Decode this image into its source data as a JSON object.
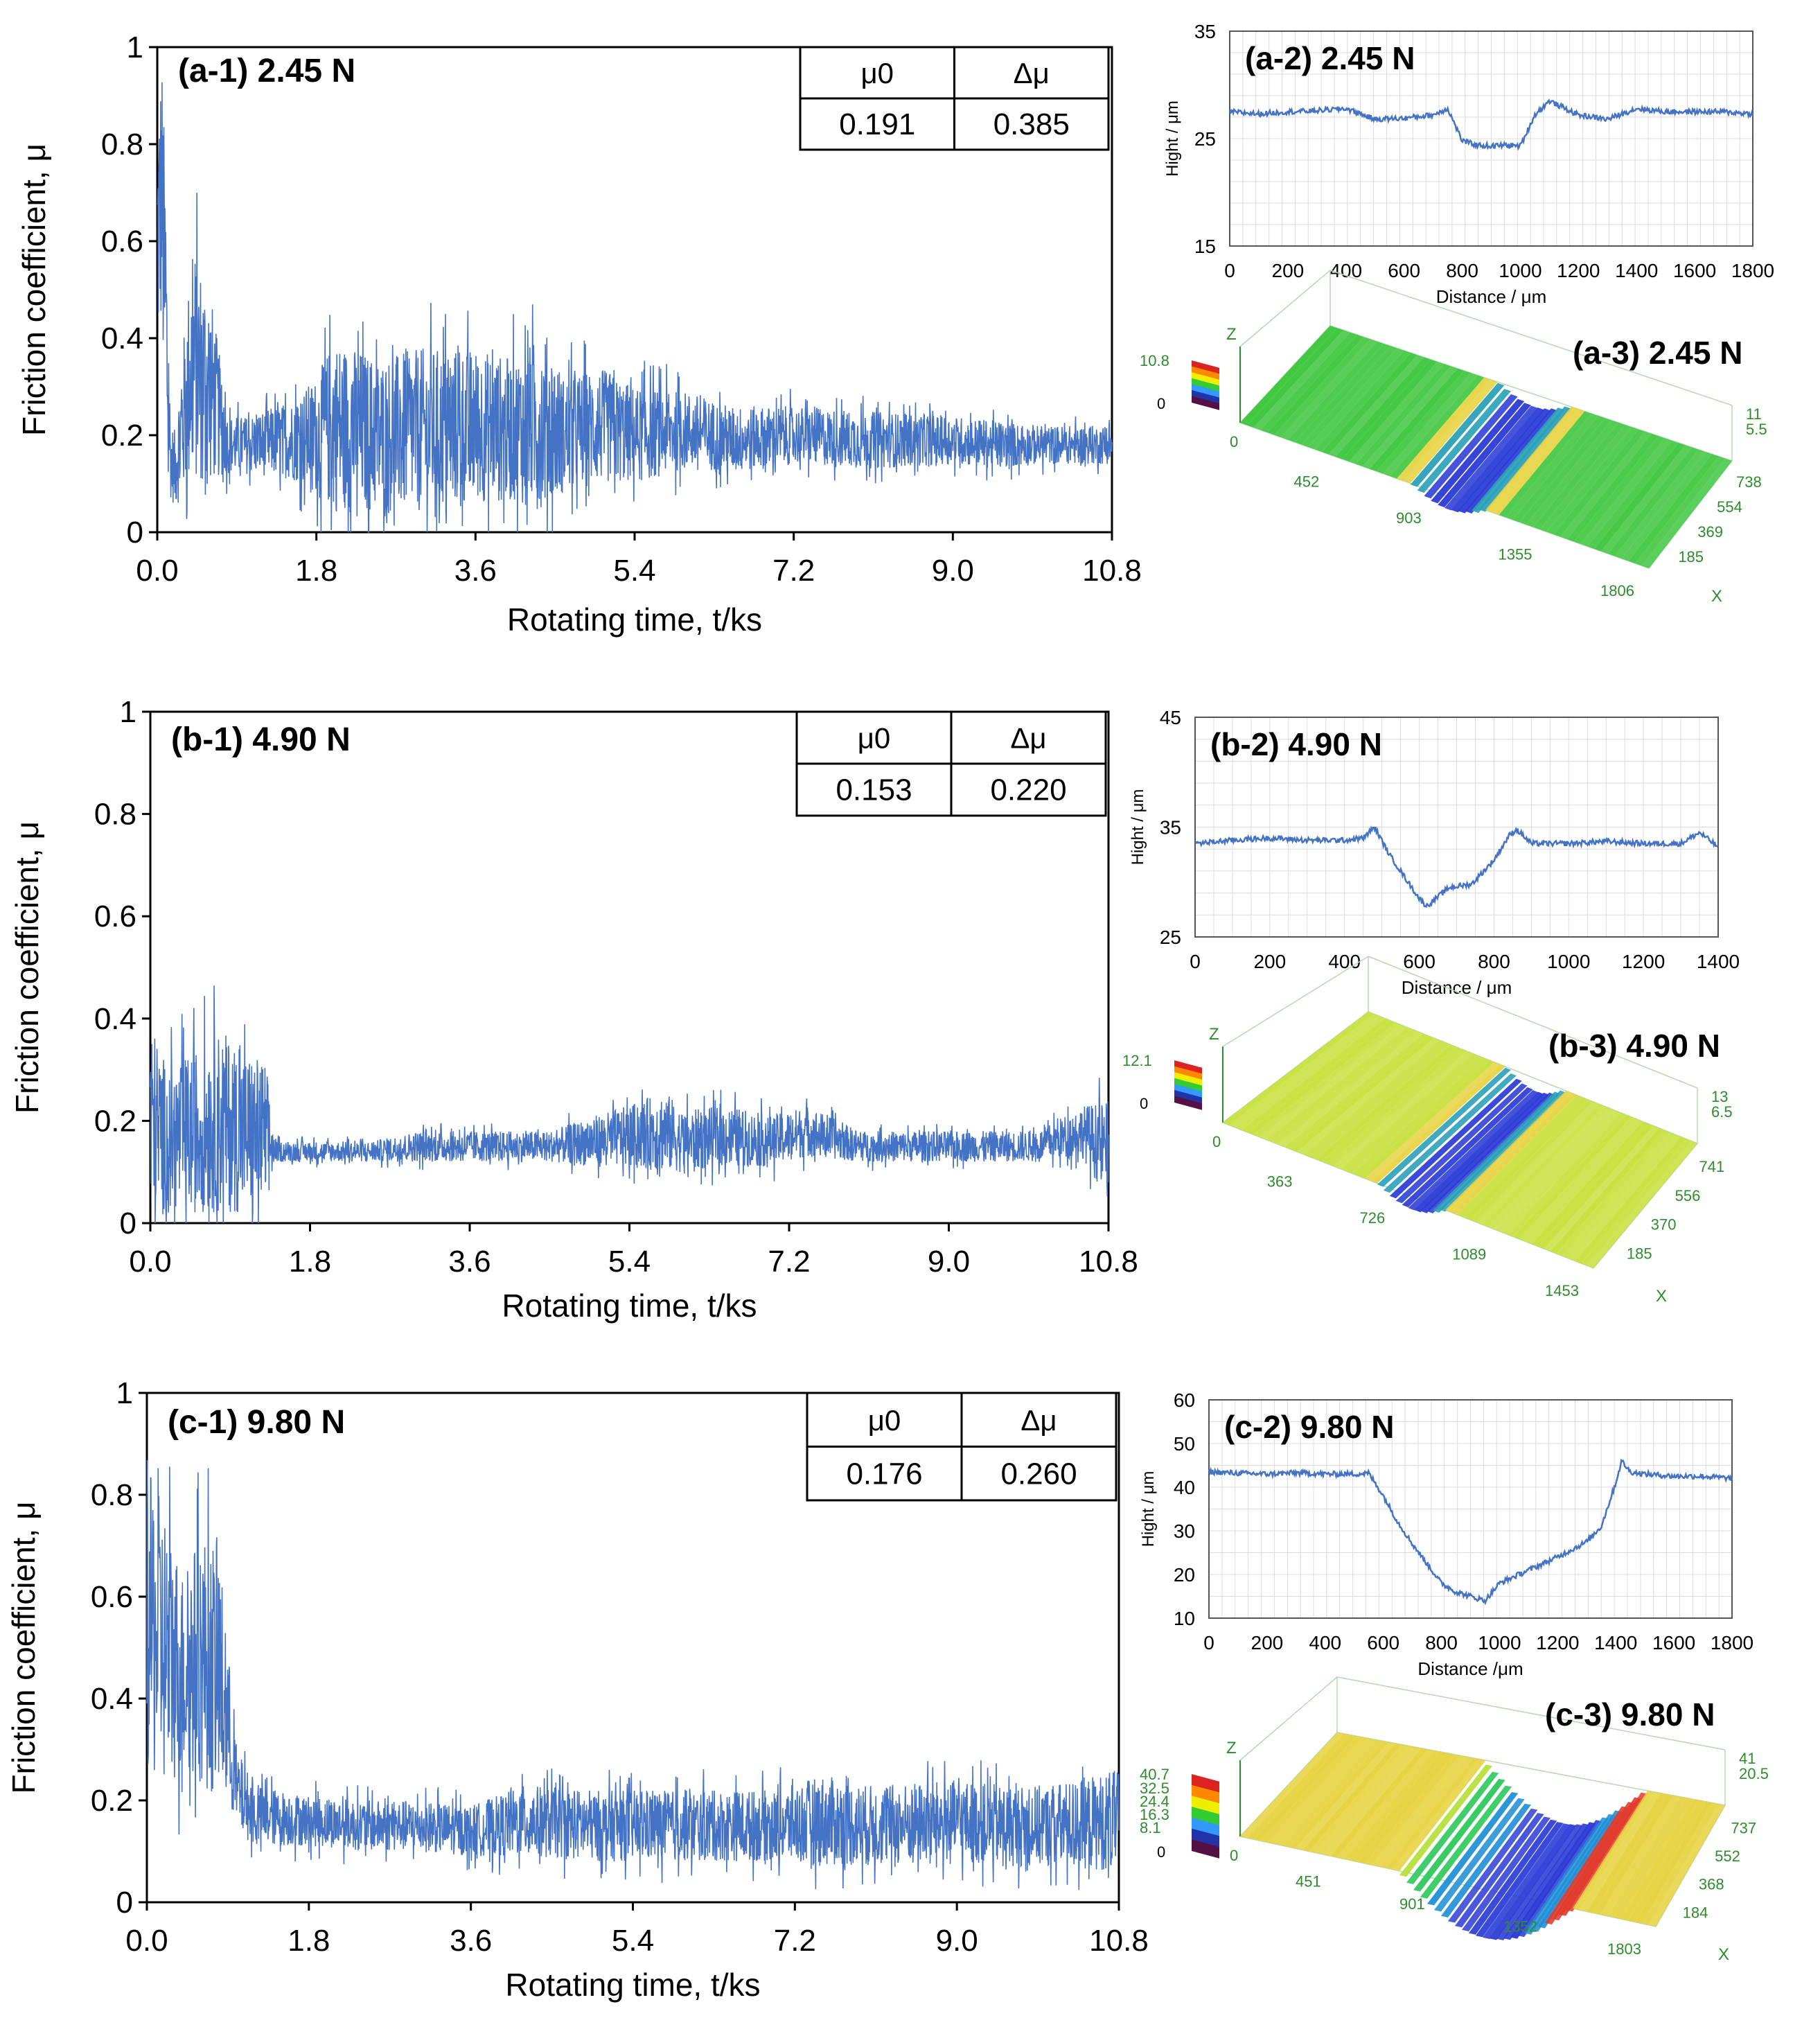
{
  "colors": {
    "line": "#4472C4",
    "axis": "#000000",
    "profile_grid": "#dcdcdc",
    "surface_green": "#3cc63c",
    "surface_yellow": "#e6d23c",
    "surface_blue": "#2b3bd6",
    "surface_red": "#e03a2a",
    "iso_axis": "#2e8b2e"
  },
  "panels": [
    {
      "friction": {
        "label": "(a-1) 2.45 N",
        "table": {
          "h1": "μ0",
          "h2": "Δμ",
          "v1": "0.191",
          "v2": "0.385"
        }
      },
      "profile": {
        "label": "(a-2) 2.45 N"
      },
      "surface": {
        "label": "(a-3) 2.45 N",
        "z_label": "Z",
        "x_label": "X",
        "legend_max": "10.8",
        "legend_min": "0",
        "origin": "0",
        "x_ticks": [
          "452",
          "903",
          "1355",
          "1806"
        ],
        "y_ticks": [
          "738",
          "554",
          "369",
          "185"
        ],
        "z_ticks": [
          "11",
          "5.5"
        ]
      }
    },
    {
      "friction": {
        "label": "(b-1) 4.90 N",
        "table": {
          "h1": "μ0",
          "h2": "Δμ",
          "v1": "0.153",
          "v2": "0.220"
        }
      },
      "profile": {
        "label": "(b-2) 4.90 N"
      },
      "surface": {
        "label": "(b-3) 4.90 N",
        "z_label": "Z",
        "x_label": "X",
        "legend_max": "12.1",
        "legend_min": "0",
        "origin": "0",
        "x_ticks": [
          "363",
          "726",
          "1089",
          "1453"
        ],
        "y_ticks": [
          "741",
          "556",
          "370",
          "185"
        ],
        "z_ticks": [
          "13",
          "6.5"
        ]
      }
    },
    {
      "friction": {
        "label": "(c-1) 9.80 N",
        "table": {
          "h1": "μ0",
          "h2": "Δμ",
          "v1": "0.176",
          "v2": "0.260"
        }
      },
      "profile": {
        "label": "(c-2) 9.80 N"
      },
      "surface": {
        "label": "(c-3) 9.80 N",
        "z_label": "Z",
        "x_label": "X",
        "legend_max": "40.7",
        "legend_mid": [
          "32.5",
          "24.4",
          "16.3",
          "8.1"
        ],
        "legend_min": "0",
        "origin": "0",
        "x_ticks": [
          "451",
          "901",
          "1352",
          "1803"
        ],
        "y_ticks": [
          "737",
          "552",
          "368",
          "184"
        ],
        "z_ticks": [
          "41",
          "20.5"
        ]
      }
    }
  ],
  "chart_data": [
    {
      "type": "line",
      "title": "(a-1) 2.45 N",
      "xlabel": "Rotating time, t/ks",
      "ylabel": "Friction coefficient, μ",
      "xlim": [
        0,
        10.8
      ],
      "ylim": [
        0,
        1
      ],
      "x_ticks": [
        "0.0",
        "1.8",
        "3.6",
        "5.4",
        "7.2",
        "9.0",
        "10.8"
      ],
      "y_ticks": [
        "0",
        "0.2",
        "0.4",
        "0.6",
        "0.8",
        "1"
      ],
      "series": [
        {
          "x": [
            0,
            0.05,
            0.1,
            0.15,
            0.2,
            0.4,
            0.6,
            0.8,
            1.0,
            1.5,
            1.8,
            2.0,
            2.5,
            3.0,
            3.6,
            4.0,
            4.4,
            4.6,
            5.0,
            5.4,
            6.0,
            6.5,
            7.2,
            8.0,
            9.0,
            9.5,
            10.0,
            10.8
          ],
          "y": [
            0.6,
            0.7,
            0.4,
            0.15,
            0.13,
            0.35,
            0.3,
            0.18,
            0.18,
            0.19,
            0.2,
            0.22,
            0.2,
            0.21,
            0.22,
            0.21,
            0.23,
            0.2,
            0.22,
            0.2,
            0.21,
            0.19,
            0.2,
            0.19,
            0.19,
            0.18,
            0.18,
            0.18
          ],
          "band": [
            0.25,
            0.3,
            0.3,
            0.08,
            0.08,
            0.25,
            0.2,
            0.06,
            0.06,
            0.08,
            0.12,
            0.18,
            0.16,
            0.17,
            0.16,
            0.15,
            0.18,
            0.12,
            0.12,
            0.1,
            0.08,
            0.07,
            0.06,
            0.06,
            0.05,
            0.05,
            0.04,
            0.04
          ]
        }
      ]
    },
    {
      "type": "line",
      "title": "(b-1) 4.90 N",
      "xlabel": "Rotating time, t/ks",
      "ylabel": "Friction coefficient, μ",
      "xlim": [
        0,
        10.8
      ],
      "ylim": [
        0,
        1
      ],
      "x_ticks": [
        "0.0",
        "1.8",
        "3.6",
        "5.4",
        "7.2",
        "9.0",
        "10.8"
      ],
      "y_ticks": [
        "0",
        "0.2",
        "0.4",
        "0.6",
        "0.8",
        "1"
      ],
      "series": [
        {
          "x": [
            0,
            0.2,
            0.5,
            0.8,
            1.0,
            1.3,
            1.4,
            1.8,
            2.5,
            3.0,
            3.6,
            4.5,
            5.0,
            5.4,
            5.8,
            6.0,
            6.5,
            7.0,
            7.4,
            8.0,
            9.0,
            10.0,
            10.5,
            10.8
          ],
          "y": [
            0.2,
            0.16,
            0.18,
            0.2,
            0.18,
            0.17,
            0.14,
            0.14,
            0.14,
            0.15,
            0.15,
            0.15,
            0.16,
            0.17,
            0.18,
            0.16,
            0.17,
            0.16,
            0.18,
            0.15,
            0.15,
            0.15,
            0.18,
            0.14
          ],
          "band": [
            0.2,
            0.14,
            0.16,
            0.18,
            0.16,
            0.15,
            0.02,
            0.02,
            0.02,
            0.03,
            0.03,
            0.03,
            0.05,
            0.06,
            0.08,
            0.06,
            0.06,
            0.05,
            0.05,
            0.03,
            0.03,
            0.03,
            0.05,
            0.1
          ]
        }
      ]
    },
    {
      "type": "line",
      "title": "(c-1) 9.80 N",
      "xlabel": "Rotating time, t/ks",
      "ylabel": "Friction coefficient, μ",
      "xlim": [
        0,
        10.8
      ],
      "ylim": [
        0,
        1
      ],
      "x_ticks": [
        "0.0",
        "1.8",
        "3.6",
        "5.4",
        "7.2",
        "9.0",
        "10.8"
      ],
      "y_ticks": [
        "0",
        "0.2",
        "0.4",
        "0.6",
        "0.8",
        "1"
      ],
      "series": [
        {
          "x": [
            0,
            0.2,
            0.4,
            0.6,
            0.8,
            0.9,
            1.0,
            1.2,
            1.8,
            2.5,
            3.0,
            3.6,
            4.2,
            5.0,
            5.4,
            6.0,
            7.0,
            7.5,
            8.0,
            9.0,
            9.5,
            10.0,
            10.8
          ],
          "y": [
            0.55,
            0.5,
            0.45,
            0.48,
            0.45,
            0.35,
            0.22,
            0.17,
            0.16,
            0.15,
            0.15,
            0.14,
            0.16,
            0.15,
            0.15,
            0.15,
            0.15,
            0.16,
            0.15,
            0.16,
            0.15,
            0.15,
            0.16
          ],
          "band": [
            0.3,
            0.28,
            0.2,
            0.25,
            0.25,
            0.15,
            0.08,
            0.06,
            0.05,
            0.05,
            0.05,
            0.05,
            0.07,
            0.07,
            0.07,
            0.07,
            0.07,
            0.09,
            0.08,
            0.08,
            0.08,
            0.08,
            0.1
          ]
        }
      ]
    },
    {
      "type": "line",
      "title": "(a-2) 2.45 N",
      "xlabel": "Distance / μm",
      "ylabel": "Hight / μm",
      "xlim": [
        0,
        1800
      ],
      "ylim": [
        15,
        35
      ],
      "x_ticks": [
        "0",
        "200",
        "400",
        "600",
        "800",
        "1000",
        "1200",
        "1400",
        "1600",
        "1800"
      ],
      "y_ticks": [
        "15",
        "25",
        "35"
      ],
      "series": [
        {
          "x": [
            0,
            100,
            200,
            300,
            400,
            500,
            600,
            700,
            750,
            800,
            850,
            900,
            950,
            1000,
            1050,
            1100,
            1200,
            1300,
            1400,
            1500,
            1600,
            1700,
            1800
          ],
          "y": [
            27.5,
            27.3,
            27.5,
            27.6,
            27.8,
            26.8,
            26.9,
            27.2,
            27.8,
            24.8,
            24.4,
            24.3,
            24.4,
            24.3,
            27.2,
            28.5,
            27.2,
            26.8,
            27.8,
            27.5,
            27.5,
            27.5,
            27.3
          ]
        }
      ]
    },
    {
      "type": "line",
      "title": "(b-2) 4.90 N",
      "xlabel": "Distance / μm",
      "ylabel": "Hight / μm",
      "xlim": [
        0,
        1400
      ],
      "ylim": [
        25,
        45
      ],
      "x_ticks": [
        "0",
        "200",
        "400",
        "600",
        "800",
        "1000",
        "1200",
        "1400"
      ],
      "y_ticks": [
        "25",
        "35",
        "45"
      ],
      "series": [
        {
          "x": [
            0,
            100,
            200,
            300,
            400,
            450,
            480,
            520,
            560,
            600,
            620,
            680,
            740,
            800,
            840,
            860,
            900,
            1000,
            1100,
            1200,
            1300,
            1350,
            1400
          ],
          "y": [
            33.5,
            33.8,
            34.0,
            33.8,
            33.8,
            34.0,
            35.0,
            32.5,
            30.5,
            28.5,
            27.8,
            29.5,
            29.8,
            32.0,
            34.2,
            34.8,
            33.5,
            33.5,
            33.7,
            33.5,
            33.5,
            34.5,
            33.2
          ]
        }
      ]
    },
    {
      "type": "line",
      "title": "(c-2) 9.80 N",
      "xlabel": "Distance /μm",
      "ylabel": "Hight / μm",
      "xlim": [
        0,
        1800
      ],
      "ylim": [
        10,
        60
      ],
      "x_ticks": [
        "0",
        "200",
        "400",
        "600",
        "800",
        "1000",
        "1200",
        "1400",
        "1600",
        "1800"
      ],
      "y_ticks": [
        "10",
        "20",
        "30",
        "40",
        "50",
        "60"
      ],
      "series": [
        {
          "x": [
            0,
            100,
            200,
            300,
            400,
            500,
            550,
            600,
            650,
            700,
            750,
            800,
            850,
            900,
            950,
            1000,
            1100,
            1200,
            1300,
            1350,
            1400,
            1420,
            1450,
            1500,
            1600,
            1700,
            1800
          ],
          "y": [
            43.5,
            43.2,
            43.0,
            43.3,
            43.0,
            43.0,
            43.2,
            38.0,
            32.0,
            27.0,
            22.5,
            18.0,
            16.0,
            15.0,
            14.0,
            18.0,
            21.0,
            24.0,
            27.5,
            31.0,
            41.0,
            46.0,
            43.5,
            43.0,
            42.5,
            42.5,
            42.0
          ]
        }
      ]
    }
  ]
}
